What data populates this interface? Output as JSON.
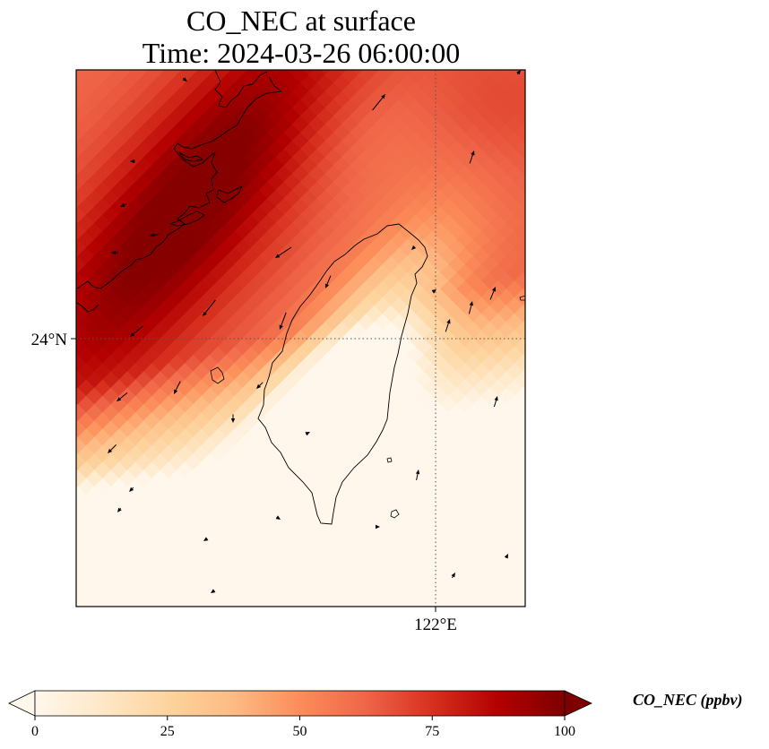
{
  "title": {
    "line1": "CO_NEC at surface",
    "line2": "Time: 2024-03-26 06:00:00"
  },
  "map": {
    "lat_label": "24°N",
    "lon_label": "122°E",
    "gridlines": "dotted",
    "coastline": "Taiwan and southeast China coast"
  },
  "colorbar": {
    "label": "CO_NEC (ppbv)",
    "ticks": [
      "0",
      "25",
      "50",
      "75",
      "100"
    ],
    "colormap": "OrRd",
    "colors": [
      "#fff7ec",
      "#fee8c8",
      "#fdd49e",
      "#fdbb84",
      "#fc8d59",
      "#ef6548",
      "#d7301f",
      "#b30000",
      "#7f0000"
    ],
    "range": [
      0,
      100
    ],
    "extend": "both"
  }
}
